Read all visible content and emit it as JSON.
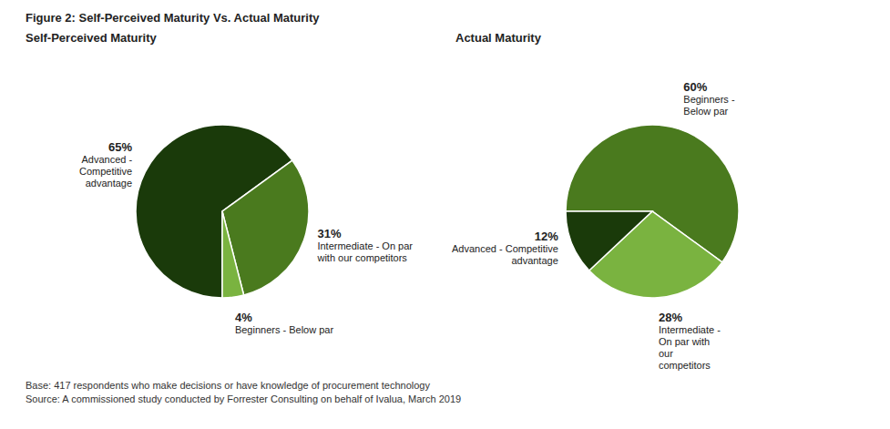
{
  "title": "Figure 2: Self-Perceived Maturity Vs. Actual Maturity",
  "annotations": [
    "Base: 417 respondents who make decisions or have knowledge of procurement technology",
    "Source: A commissioned study conducted by Forrester Consulting on behalf of Ivalua, March 2019"
  ],
  "chart_data": [
    {
      "type": "pie",
      "title": "Self-Perceived Maturity",
      "categories": [
        "Advanced -\nCompetitive\nadvantage",
        "Intermediate - On par\nwith our competitors",
        "Beginners - Below par"
      ],
      "values": [
        65,
        31,
        4
      ],
      "value_labels": [
        "65%",
        "31%",
        "4%"
      ],
      "colors": [
        "#1a3a0a",
        "#4a7a1e",
        "#7ab340"
      ],
      "data_labels": true
    },
    {
      "type": "pie",
      "title": "Actual Maturity",
      "categories": [
        "Beginners -\nBelow par",
        "Intermediate -\nOn par with\nour\ncompetitors",
        "Advanced - Competitive\nadvantage"
      ],
      "values": [
        60,
        28,
        12
      ],
      "value_labels": [
        "60%",
        "28%",
        "12%"
      ],
      "colors": [
        "#4a7a1e",
        "#7ab340",
        "#1a3a0a"
      ],
      "data_labels": true
    }
  ]
}
